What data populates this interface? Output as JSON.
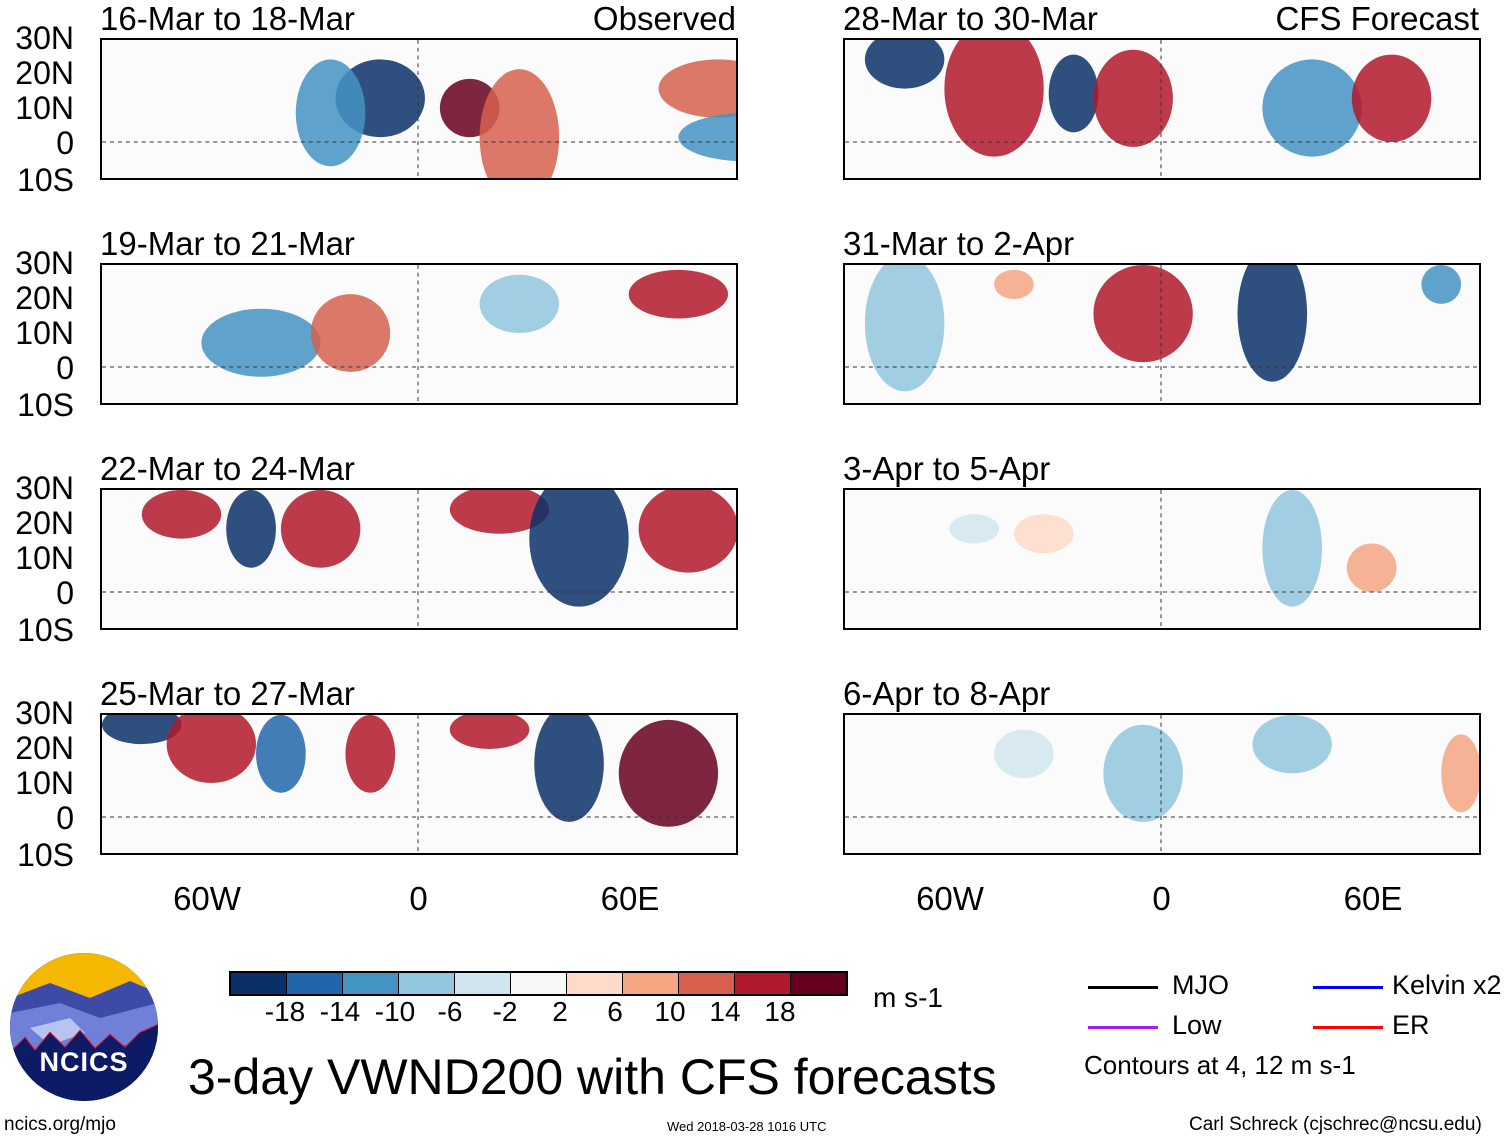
{
  "panels": [
    {
      "title": "16-Mar to 18-Mar",
      "tag": "Observed"
    },
    {
      "title": "28-Mar to 30-Mar",
      "tag": "CFS Forecast"
    },
    {
      "title": "19-Mar to 21-Mar",
      "tag": ""
    },
    {
      "title": "31-Mar to 2-Apr",
      "tag": ""
    },
    {
      "title": "22-Mar to 24-Mar",
      "tag": ""
    },
    {
      "title": "3-Apr to 5-Apr",
      "tag": ""
    },
    {
      "title": "25-Mar to 27-Mar",
      "tag": ""
    },
    {
      "title": "6-Apr to 8-Apr",
      "tag": ""
    }
  ],
  "lat_labels": [
    "30N",
    "20N",
    "10N",
    "0",
    "10S"
  ],
  "lon_labels": [
    "60W",
    "0",
    "60E"
  ],
  "colorbar": {
    "colors": [
      "#0a3167",
      "#2166ac",
      "#4393c3",
      "#92c5de",
      "#d1e5f0",
      "#f7f7f7",
      "#fddbc7",
      "#f4a582",
      "#d6604d",
      "#b2182b",
      "#67001f"
    ],
    "labels": [
      "-18",
      "-14",
      "-10",
      "-6",
      "-2",
      "2",
      "6",
      "10",
      "14",
      "18"
    ],
    "units": "m s-1"
  },
  "legend": {
    "items": [
      {
        "label": "MJO",
        "color": "#000000"
      },
      {
        "label": "Kelvin x2",
        "color": "#0000ff"
      },
      {
        "label": "Low",
        "color": "#a020f0"
      },
      {
        "label": "ER",
        "color": "#ff0000"
      }
    ],
    "note": "Contours at 4, 12 m s-1"
  },
  "logo": "NCICS",
  "title": "3-day VWND200 with CFS forecasts",
  "footer": {
    "left": "ncics.org/mjo",
    "center": "Wed 2018-03-28 1016 UTC",
    "right": "Carl Schreck (cjschrec@ncsu.edu)"
  }
}
